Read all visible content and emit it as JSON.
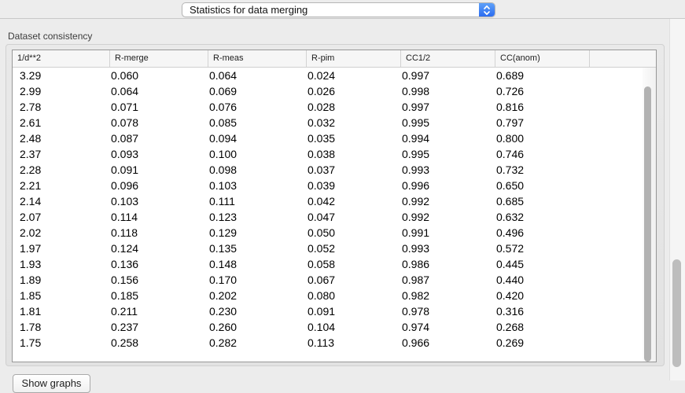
{
  "toolbar": {
    "view_select": {
      "value": "Statistics for data merging"
    }
  },
  "section": {
    "label": "Dataset consistency"
  },
  "table": {
    "columns": [
      "1/d**2",
      "R-merge",
      "R-meas",
      "R-pim",
      "CC1/2",
      "CC(anom)"
    ],
    "rows": [
      [
        "3.29",
        "0.060",
        "0.064",
        "0.024",
        "0.997",
        "0.689"
      ],
      [
        "2.99",
        "0.064",
        "0.069",
        "0.026",
        "0.998",
        "0.726"
      ],
      [
        "2.78",
        "0.071",
        "0.076",
        "0.028",
        "0.997",
        "0.816"
      ],
      [
        "2.61",
        "0.078",
        "0.085",
        "0.032",
        "0.995",
        "0.797"
      ],
      [
        "2.48",
        "0.087",
        "0.094",
        "0.035",
        "0.994",
        "0.800"
      ],
      [
        "2.37",
        "0.093",
        "0.100",
        "0.038",
        "0.995",
        "0.746"
      ],
      [
        "2.28",
        "0.091",
        "0.098",
        "0.037",
        "0.993",
        "0.732"
      ],
      [
        "2.21",
        "0.096",
        "0.103",
        "0.039",
        "0.996",
        "0.650"
      ],
      [
        "2.14",
        "0.103",
        "0.111",
        "0.042",
        "0.992",
        "0.685"
      ],
      [
        "2.07",
        "0.114",
        "0.123",
        "0.047",
        "0.992",
        "0.632"
      ],
      [
        "2.02",
        "0.118",
        "0.129",
        "0.050",
        "0.991",
        "0.496"
      ],
      [
        "1.97",
        "0.124",
        "0.135",
        "0.052",
        "0.993",
        "0.572"
      ],
      [
        "1.93",
        "0.136",
        "0.148",
        "0.058",
        "0.986",
        "0.445"
      ],
      [
        "1.89",
        "0.156",
        "0.170",
        "0.067",
        "0.987",
        "0.440"
      ],
      [
        "1.85",
        "0.185",
        "0.202",
        "0.080",
        "0.982",
        "0.420"
      ],
      [
        "1.81",
        "0.211",
        "0.230",
        "0.091",
        "0.978",
        "0.316"
      ],
      [
        "1.78",
        "0.237",
        "0.260",
        "0.104",
        "0.974",
        "0.268"
      ],
      [
        "1.75",
        "0.258",
        "0.282",
        "0.113",
        "0.966",
        "0.269"
      ]
    ]
  },
  "footer": {
    "show_graphs_label": "Show graphs"
  },
  "colors": {
    "accent_blue": "#3b7ef2",
    "window_bg": "#ececec",
    "table_header_bg": "#f6f6f6"
  }
}
